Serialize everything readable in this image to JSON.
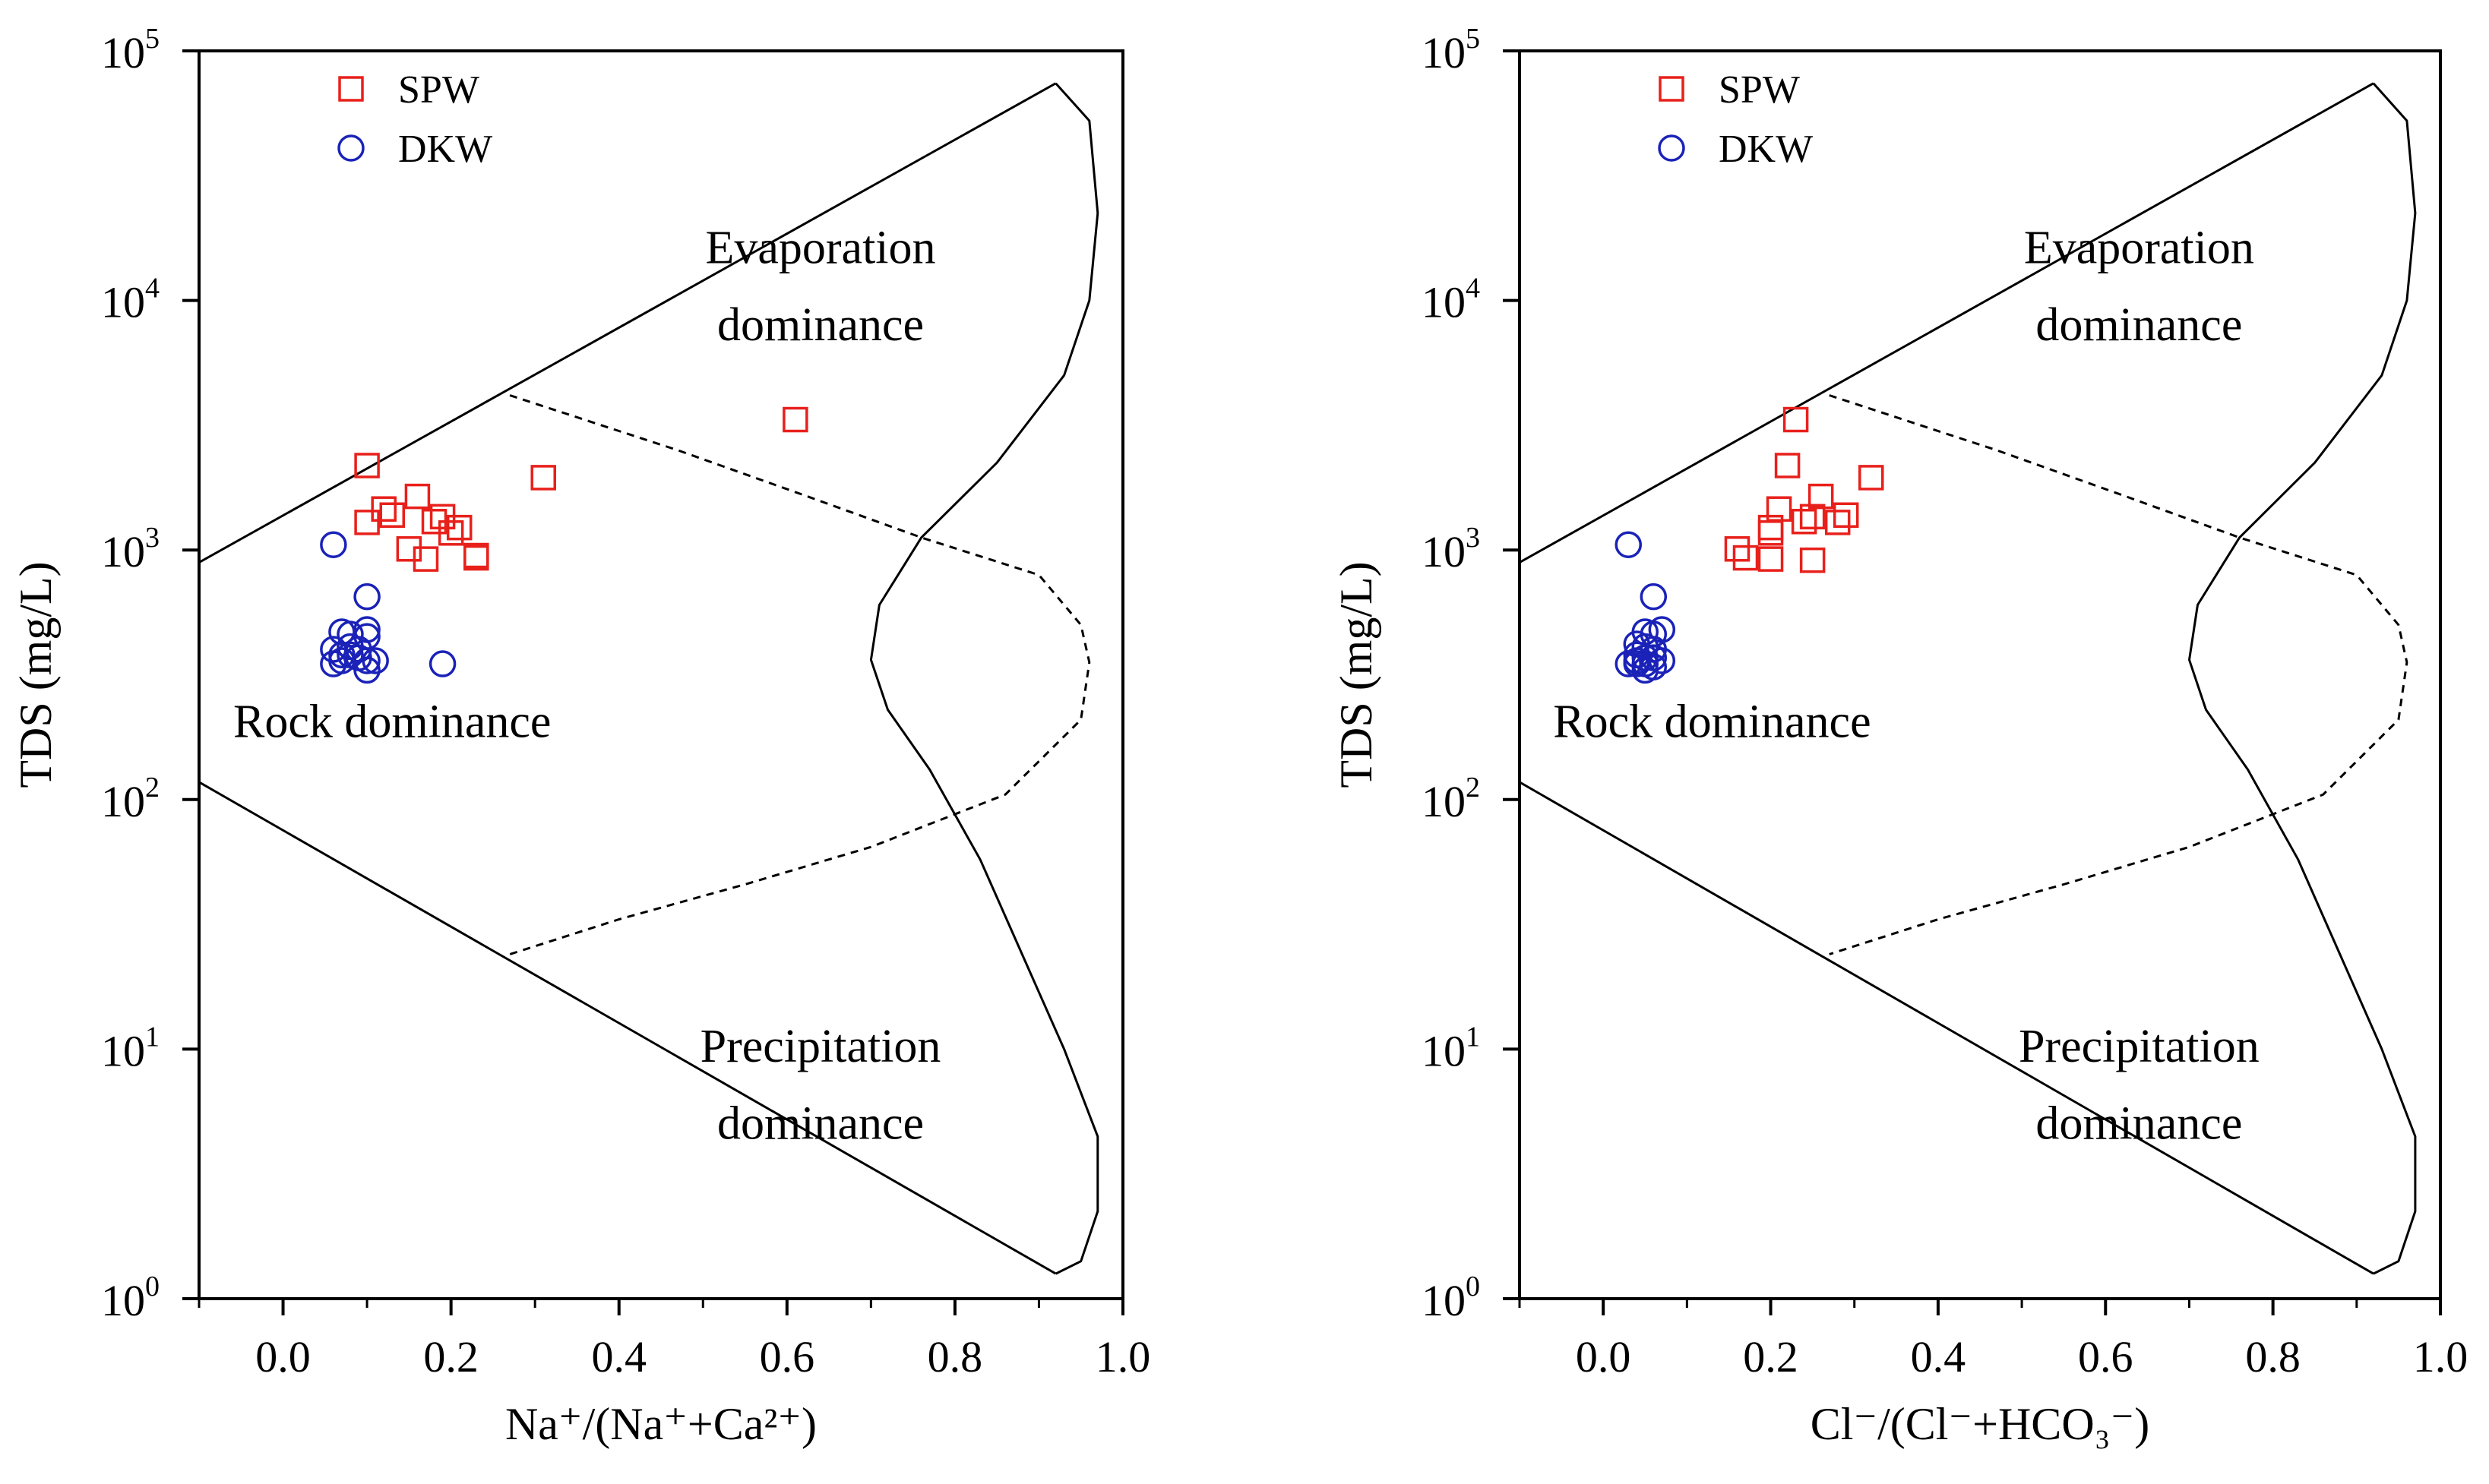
{
  "chart_data": [
    {
      "type": "scatter",
      "xlabel": "Na⁺/(Na⁺+Ca²⁺)",
      "ylabel": "TDS (mg/L)",
      "xlim": [
        -0.1,
        1.0
      ],
      "ylim": [
        1,
        100000
      ],
      "yscale": "log",
      "x_ticks": [
        "0.0",
        "0.2",
        "0.4",
        "0.6",
        "0.8",
        "1.0"
      ],
      "y_ticks": [
        {
          "base": "10",
          "exp": "0"
        },
        {
          "base": "10",
          "exp": "1"
        },
        {
          "base": "10",
          "exp": "2"
        },
        {
          "base": "10",
          "exp": "3"
        },
        {
          "base": "10",
          "exp": "4"
        },
        {
          "base": "10",
          "exp": "5"
        }
      ],
      "legend": {
        "position": "top-left",
        "entries": [
          "SPW",
          "DKW"
        ]
      },
      "regions": [
        "Evaporation",
        "dominance",
        "Rock dominance",
        "Precipitation",
        "dominance"
      ],
      "series": [
        {
          "name": "SPW",
          "marker": "square",
          "color": "#e8201b",
          "points": [
            [
              0.1,
              2180
            ],
            [
              0.12,
              1460
            ],
            [
              0.13,
              1380
            ],
            [
              0.16,
              1640
            ],
            [
              0.1,
              1290
            ],
            [
              0.18,
              1300
            ],
            [
              0.19,
              1360
            ],
            [
              0.2,
              1170
            ],
            [
              0.21,
              1230
            ],
            [
              0.15,
              1010
            ],
            [
              0.17,
              920
            ],
            [
              0.23,
              950
            ],
            [
              0.23,
              930
            ],
            [
              0.31,
              1950
            ],
            [
              0.61,
              3330
            ]
          ]
        },
        {
          "name": "DKW",
          "marker": "circle",
          "color": "#1a22b8",
          "points": [
            [
              0.06,
              1050
            ],
            [
              0.1,
              650
            ],
            [
              0.19,
              350
            ],
            [
              0.07,
              470
            ],
            [
              0.08,
              460
            ],
            [
              0.1,
              480
            ],
            [
              0.1,
              450
            ],
            [
              0.06,
              400
            ],
            [
              0.07,
              380
            ],
            [
              0.08,
              410
            ],
            [
              0.09,
              400
            ],
            [
              0.08,
              380
            ],
            [
              0.09,
              370
            ],
            [
              0.07,
              360
            ],
            [
              0.1,
              360
            ],
            [
              0.06,
              350
            ],
            [
              0.1,
              330
            ],
            [
              0.11,
              360
            ]
          ]
        }
      ]
    },
    {
      "type": "scatter",
      "xlabel": "Cl⁻/(Cl⁻+HCO₃⁻)",
      "ylabel": "TDS (mg/L)",
      "xlim": [
        -0.1,
        1.0
      ],
      "ylim": [
        1,
        100000
      ],
      "yscale": "log",
      "x_ticks": [
        "0.0",
        "0.2",
        "0.4",
        "0.6",
        "0.8",
        "1.0"
      ],
      "y_ticks": [
        {
          "base": "10",
          "exp": "0"
        },
        {
          "base": "10",
          "exp": "1"
        },
        {
          "base": "10",
          "exp": "2"
        },
        {
          "base": "10",
          "exp": "3"
        },
        {
          "base": "10",
          "exp": "4"
        },
        {
          "base": "10",
          "exp": "5"
        }
      ],
      "legend": {
        "position": "top-left",
        "entries": [
          "SPW",
          "DKW"
        ]
      },
      "regions": [
        "Evaporation",
        "dominance",
        "Rock dominance",
        "Precipitation",
        "dominance"
      ],
      "series": [
        {
          "name": "SPW",
          "marker": "square",
          "color": "#e8201b",
          "points": [
            [
              0.23,
              3330
            ],
            [
              0.22,
              2180
            ],
            [
              0.32,
              1950
            ],
            [
              0.26,
              1640
            ],
            [
              0.21,
              1460
            ],
            [
              0.25,
              1360
            ],
            [
              0.29,
              1380
            ],
            [
              0.24,
              1300
            ],
            [
              0.28,
              1290
            ],
            [
              0.2,
              1230
            ],
            [
              0.2,
              1170
            ],
            [
              0.16,
              1010
            ],
            [
              0.17,
              930
            ],
            [
              0.2,
              920
            ],
            [
              0.25,
              910
            ]
          ]
        },
        {
          "name": "DKW",
          "marker": "circle",
          "color": "#1a22b8",
          "points": [
            [
              0.03,
              1050
            ],
            [
              0.06,
              650
            ],
            [
              0.05,
              470
            ],
            [
              0.07,
              480
            ],
            [
              0.06,
              460
            ],
            [
              0.04,
              420
            ],
            [
              0.05,
              410
            ],
            [
              0.06,
              400
            ],
            [
              0.04,
              380
            ],
            [
              0.05,
              370
            ],
            [
              0.06,
              370
            ],
            [
              0.04,
              360
            ],
            [
              0.05,
              350
            ],
            [
              0.07,
              360
            ],
            [
              0.06,
              340
            ],
            [
              0.04,
              350
            ],
            [
              0.05,
              330
            ],
            [
              0.03,
              350
            ]
          ]
        }
      ]
    }
  ]
}
